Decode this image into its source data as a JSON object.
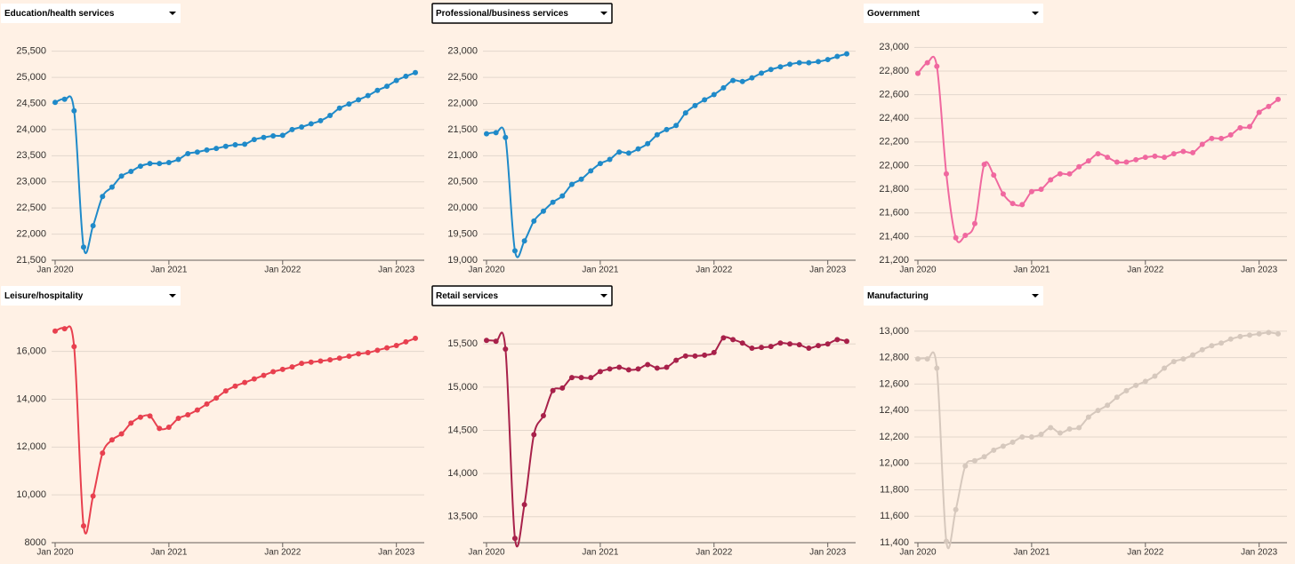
{
  "chart_data": [
    {
      "type": "line",
      "title": "Education/health services",
      "color": "#1f8ac9",
      "selected": false,
      "x": [
        "2020-01",
        "2020-02",
        "2020-03",
        "2020-04",
        "2020-05",
        "2020-06",
        "2020-07",
        "2020-08",
        "2020-09",
        "2020-10",
        "2020-11",
        "2020-12",
        "2021-01",
        "2021-02",
        "2021-03",
        "2021-04",
        "2021-05",
        "2021-06",
        "2021-07",
        "2021-08",
        "2021-09",
        "2021-10",
        "2021-11",
        "2021-12",
        "2022-01",
        "2022-02",
        "2022-03",
        "2022-04",
        "2022-05",
        "2022-06",
        "2022-07",
        "2022-08",
        "2022-09",
        "2022-10",
        "2022-11",
        "2022-12",
        "2023-01",
        "2023-02",
        "2023-03"
      ],
      "values": [
        24520,
        24580,
        24360,
        21750,
        22160,
        22720,
        22900,
        23110,
        23200,
        23300,
        23350,
        23350,
        23370,
        23430,
        23540,
        23570,
        23610,
        23640,
        23680,
        23710,
        23720,
        23810,
        23850,
        23880,
        23890,
        24000,
        24050,
        24110,
        24170,
        24270,
        24410,
        24490,
        24570,
        24650,
        24750,
        24830,
        24940,
        25020,
        25090
      ],
      "xticks": [
        {
          "value": "2020-01",
          "label": "Jan 2020"
        },
        {
          "value": "2021-01",
          "label": "Jan 2021"
        },
        {
          "value": "2022-01",
          "label": "Jan 2022"
        },
        {
          "value": "2023-01",
          "label": "Jan 2023"
        }
      ],
      "ylim": [
        21500,
        25800
      ],
      "yticks": [
        {
          "value": 21500,
          "label": "21,500"
        },
        {
          "value": 22000,
          "label": "22,000"
        },
        {
          "value": 22500,
          "label": "22,500"
        },
        {
          "value": 23000,
          "label": "23,000"
        },
        {
          "value": 23500,
          "label": "23,500"
        },
        {
          "value": 24000,
          "label": "24,000"
        },
        {
          "value": 24500,
          "label": "24,500"
        },
        {
          "value": 25000,
          "label": "25,000"
        },
        {
          "value": 25500,
          "label": "25,500"
        }
      ],
      "grid": true
    },
    {
      "type": "line",
      "title": "Professional/business services",
      "color": "#1f8ac9",
      "selected": true,
      "x": [
        "2020-01",
        "2020-02",
        "2020-03",
        "2020-04",
        "2020-05",
        "2020-06",
        "2020-07",
        "2020-08",
        "2020-09",
        "2020-10",
        "2020-11",
        "2020-12",
        "2021-01",
        "2021-02",
        "2021-03",
        "2021-04",
        "2021-05",
        "2021-06",
        "2021-07",
        "2021-08",
        "2021-09",
        "2021-10",
        "2021-11",
        "2021-12",
        "2022-01",
        "2022-02",
        "2022-03",
        "2022-04",
        "2022-05",
        "2022-06",
        "2022-07",
        "2022-08",
        "2022-09",
        "2022-10",
        "2022-11",
        "2022-12",
        "2023-01",
        "2023-02",
        "2023-03"
      ],
      "values": [
        21420,
        21440,
        21350,
        19180,
        19370,
        19750,
        19940,
        20110,
        20230,
        20450,
        20550,
        20710,
        20850,
        20930,
        21070,
        21050,
        21130,
        21230,
        21400,
        21500,
        21580,
        21820,
        21960,
        22070,
        22170,
        22300,
        22440,
        22420,
        22490,
        22580,
        22650,
        22700,
        22750,
        22780,
        22780,
        22800,
        22840,
        22900,
        22950
      ],
      "xticks": [
        {
          "value": "2020-01",
          "label": "Jan 2020"
        },
        {
          "value": "2021-01",
          "label": "Jan 2021"
        },
        {
          "value": "2022-01",
          "label": "Jan 2022"
        },
        {
          "value": "2023-01",
          "label": "Jan 2023"
        }
      ],
      "ylim": [
        19000,
        23300
      ],
      "yticks": [
        {
          "value": 19000,
          "label": "19,000"
        },
        {
          "value": 19500,
          "label": "19,500"
        },
        {
          "value": 20000,
          "label": "20,000"
        },
        {
          "value": 20500,
          "label": "20,500"
        },
        {
          "value": 21000,
          "label": "21,000"
        },
        {
          "value": 21500,
          "label": "21,500"
        },
        {
          "value": 22000,
          "label": "22,000"
        },
        {
          "value": 22500,
          "label": "22,500"
        },
        {
          "value": 23000,
          "label": "23,000"
        }
      ],
      "grid": true
    },
    {
      "type": "line",
      "title": "Government",
      "color": "#f0689f",
      "selected": false,
      "x": [
        "2020-01",
        "2020-02",
        "2020-03",
        "2020-04",
        "2020-05",
        "2020-06",
        "2020-07",
        "2020-08",
        "2020-09",
        "2020-10",
        "2020-11",
        "2020-12",
        "2021-01",
        "2021-02",
        "2021-03",
        "2021-04",
        "2021-05",
        "2021-06",
        "2021-07",
        "2021-08",
        "2021-09",
        "2021-10",
        "2021-11",
        "2021-12",
        "2022-01",
        "2022-02",
        "2022-03",
        "2022-04",
        "2022-05",
        "2022-06",
        "2022-07",
        "2022-08",
        "2022-09",
        "2022-10",
        "2022-11",
        "2022-12",
        "2023-01",
        "2023-02",
        "2023-03"
      ],
      "values": [
        22780,
        22870,
        22840,
        21930,
        21390,
        21410,
        21510,
        22010,
        21920,
        21760,
        21680,
        21670,
        21780,
        21800,
        21880,
        21930,
        21930,
        21990,
        22040,
        22100,
        22070,
        22030,
        22030,
        22050,
        22070,
        22080,
        22070,
        22100,
        22120,
        22110,
        22180,
        22230,
        22230,
        22260,
        22320,
        22330,
        22450,
        22500,
        22560
      ],
      "xticks": [
        {
          "value": "2020-01",
          "label": "Jan 2020"
        },
        {
          "value": "2021-01",
          "label": "Jan 2021"
        },
        {
          "value": "2022-01",
          "label": "Jan 2022"
        },
        {
          "value": "2023-01",
          "label": "Jan 2023"
        }
      ],
      "ylim": [
        21200,
        23100
      ],
      "yticks": [
        {
          "value": 21200,
          "label": "21,200"
        },
        {
          "value": 21400,
          "label": "21,400"
        },
        {
          "value": 21600,
          "label": "21,600"
        },
        {
          "value": 21800,
          "label": "21,800"
        },
        {
          "value": 22000,
          "label": "22,000"
        },
        {
          "value": 22200,
          "label": "22,200"
        },
        {
          "value": 22400,
          "label": "22,400"
        },
        {
          "value": 22600,
          "label": "22,600"
        },
        {
          "value": 22800,
          "label": "22,800"
        },
        {
          "value": 23000,
          "label": "23,000"
        }
      ],
      "grid": true
    },
    {
      "type": "line",
      "title": "Leisure/hospitality",
      "color": "#e8404f",
      "selected": false,
      "x": [
        "2020-01",
        "2020-02",
        "2020-03",
        "2020-04",
        "2020-05",
        "2020-06",
        "2020-07",
        "2020-08",
        "2020-09",
        "2020-10",
        "2020-11",
        "2020-12",
        "2021-01",
        "2021-02",
        "2021-03",
        "2021-04",
        "2021-05",
        "2021-06",
        "2021-07",
        "2021-08",
        "2021-09",
        "2021-10",
        "2021-11",
        "2021-12",
        "2022-01",
        "2022-02",
        "2022-03",
        "2022-04",
        "2022-05",
        "2022-06",
        "2022-07",
        "2022-08",
        "2022-09",
        "2022-10",
        "2022-11",
        "2022-12",
        "2023-01",
        "2023-02",
        "2023-03"
      ],
      "values": [
        16850,
        16950,
        16200,
        8700,
        9950,
        11750,
        12300,
        12550,
        13000,
        13250,
        13300,
        12780,
        12830,
        13200,
        13350,
        13550,
        13800,
        14050,
        14350,
        14550,
        14700,
        14850,
        15000,
        15150,
        15250,
        15350,
        15500,
        15550,
        15600,
        15650,
        15720,
        15800,
        15900,
        15950,
        16050,
        16150,
        16250,
        16400,
        16550
      ],
      "xticks": [
        {
          "value": "2020-01",
          "label": "Jan 2020"
        },
        {
          "value": "2021-01",
          "label": "Jan 2021"
        },
        {
          "value": "2022-01",
          "label": "Jan 2022"
        },
        {
          "value": "2023-01",
          "label": "Jan 2023"
        }
      ],
      "ylim": [
        8000,
        17400
      ],
      "yticks": [
        8000,
        {
          "value": 10000,
          "label": "10,000"
        },
        {
          "value": 12000,
          "label": "12,000"
        },
        {
          "value": 14000,
          "label": "14,000"
        },
        {
          "value": 16000,
          "label": "16,000"
        }
      ],
      "grid": true
    },
    {
      "type": "line",
      "title": "Retail services",
      "color": "#a8214a",
      "selected": true,
      "x": [
        "2020-01",
        "2020-02",
        "2020-03",
        "2020-04",
        "2020-05",
        "2020-06",
        "2020-07",
        "2020-08",
        "2020-09",
        "2020-10",
        "2020-11",
        "2020-12",
        "2021-01",
        "2021-02",
        "2021-03",
        "2021-04",
        "2021-05",
        "2021-06",
        "2021-07",
        "2021-08",
        "2021-09",
        "2021-10",
        "2021-11",
        "2021-12",
        "2022-01",
        "2022-02",
        "2022-03",
        "2022-04",
        "2022-05",
        "2022-06",
        "2022-07",
        "2022-08",
        "2022-09",
        "2022-10",
        "2022-11",
        "2022-12",
        "2023-01",
        "2023-02",
        "2023-03"
      ],
      "values": [
        15540,
        15530,
        15440,
        13250,
        13640,
        14450,
        14670,
        14960,
        14990,
        15110,
        15110,
        15110,
        15180,
        15210,
        15230,
        15200,
        15210,
        15260,
        15220,
        15230,
        15310,
        15360,
        15360,
        15370,
        15400,
        15570,
        15550,
        15510,
        15450,
        15460,
        15470,
        15510,
        15500,
        15490,
        15450,
        15480,
        15500,
        15550,
        15530
      ],
      "xticks": [
        {
          "value": "2020-01",
          "label": "Jan 2020"
        },
        {
          "value": "2021-01",
          "label": "Jan 2021"
        },
        {
          "value": "2022-01",
          "label": "Jan 2022"
        },
        {
          "value": "2023-01",
          "label": "Jan 2023"
        }
      ],
      "ylim": [
        13200,
        15800
      ],
      "yticks": [
        {
          "value": 13500,
          "label": "13,500"
        },
        {
          "value": 14000,
          "label": "14,000"
        },
        {
          "value": 14500,
          "label": "14,500"
        },
        {
          "value": 15000,
          "label": "15,000"
        },
        {
          "value": 15500,
          "label": "15,500"
        }
      ],
      "grid": true
    },
    {
      "type": "line",
      "title": "Manufacturing",
      "color": "#d6c8bd",
      "selected": false,
      "x": [
        "2020-01",
        "2020-02",
        "2020-03",
        "2020-04",
        "2020-05",
        "2020-06",
        "2020-07",
        "2020-08",
        "2020-09",
        "2020-10",
        "2020-11",
        "2020-12",
        "2021-01",
        "2021-02",
        "2021-03",
        "2021-04",
        "2021-05",
        "2021-06",
        "2021-07",
        "2021-08",
        "2021-09",
        "2021-10",
        "2021-11",
        "2021-12",
        "2022-01",
        "2022-02",
        "2022-03",
        "2022-04",
        "2022-05",
        "2022-06",
        "2022-07",
        "2022-08",
        "2022-09",
        "2022-10",
        "2022-11",
        "2022-12",
        "2023-01",
        "2023-02",
        "2023-03"
      ],
      "values": [
        12790,
        12790,
        12720,
        11410,
        11650,
        11980,
        12020,
        12050,
        12100,
        12130,
        12160,
        12200,
        12200,
        12220,
        12270,
        12230,
        12260,
        12270,
        12350,
        12400,
        12440,
        12500,
        12550,
        12590,
        12620,
        12660,
        12720,
        12770,
        12790,
        12820,
        12860,
        12890,
        12910,
        12940,
        12960,
        12970,
        12980,
        12990,
        12980
      ],
      "xticks": [
        {
          "value": "2020-01",
          "label": "Jan 2020"
        },
        {
          "value": "2021-01",
          "label": "Jan 2021"
        },
        {
          "value": "2022-01",
          "label": "Jan 2022"
        },
        {
          "value": "2023-01",
          "label": "Jan 2023"
        }
      ],
      "ylim": [
        11400,
        13100
      ],
      "yticks": [
        {
          "value": 11400,
          "label": "11,400"
        },
        {
          "value": 11600,
          "label": "11,600"
        },
        {
          "value": 11800,
          "label": "11,800"
        },
        {
          "value": 12000,
          "label": "12,000"
        },
        {
          "value": 12200,
          "label": "12,200"
        },
        {
          "value": 12400,
          "label": "12,400"
        },
        {
          "value": 12600,
          "label": "12,600"
        },
        {
          "value": 12800,
          "label": "12,800"
        },
        {
          "value": 13000,
          "label": "13,000"
        }
      ],
      "grid": true
    }
  ]
}
